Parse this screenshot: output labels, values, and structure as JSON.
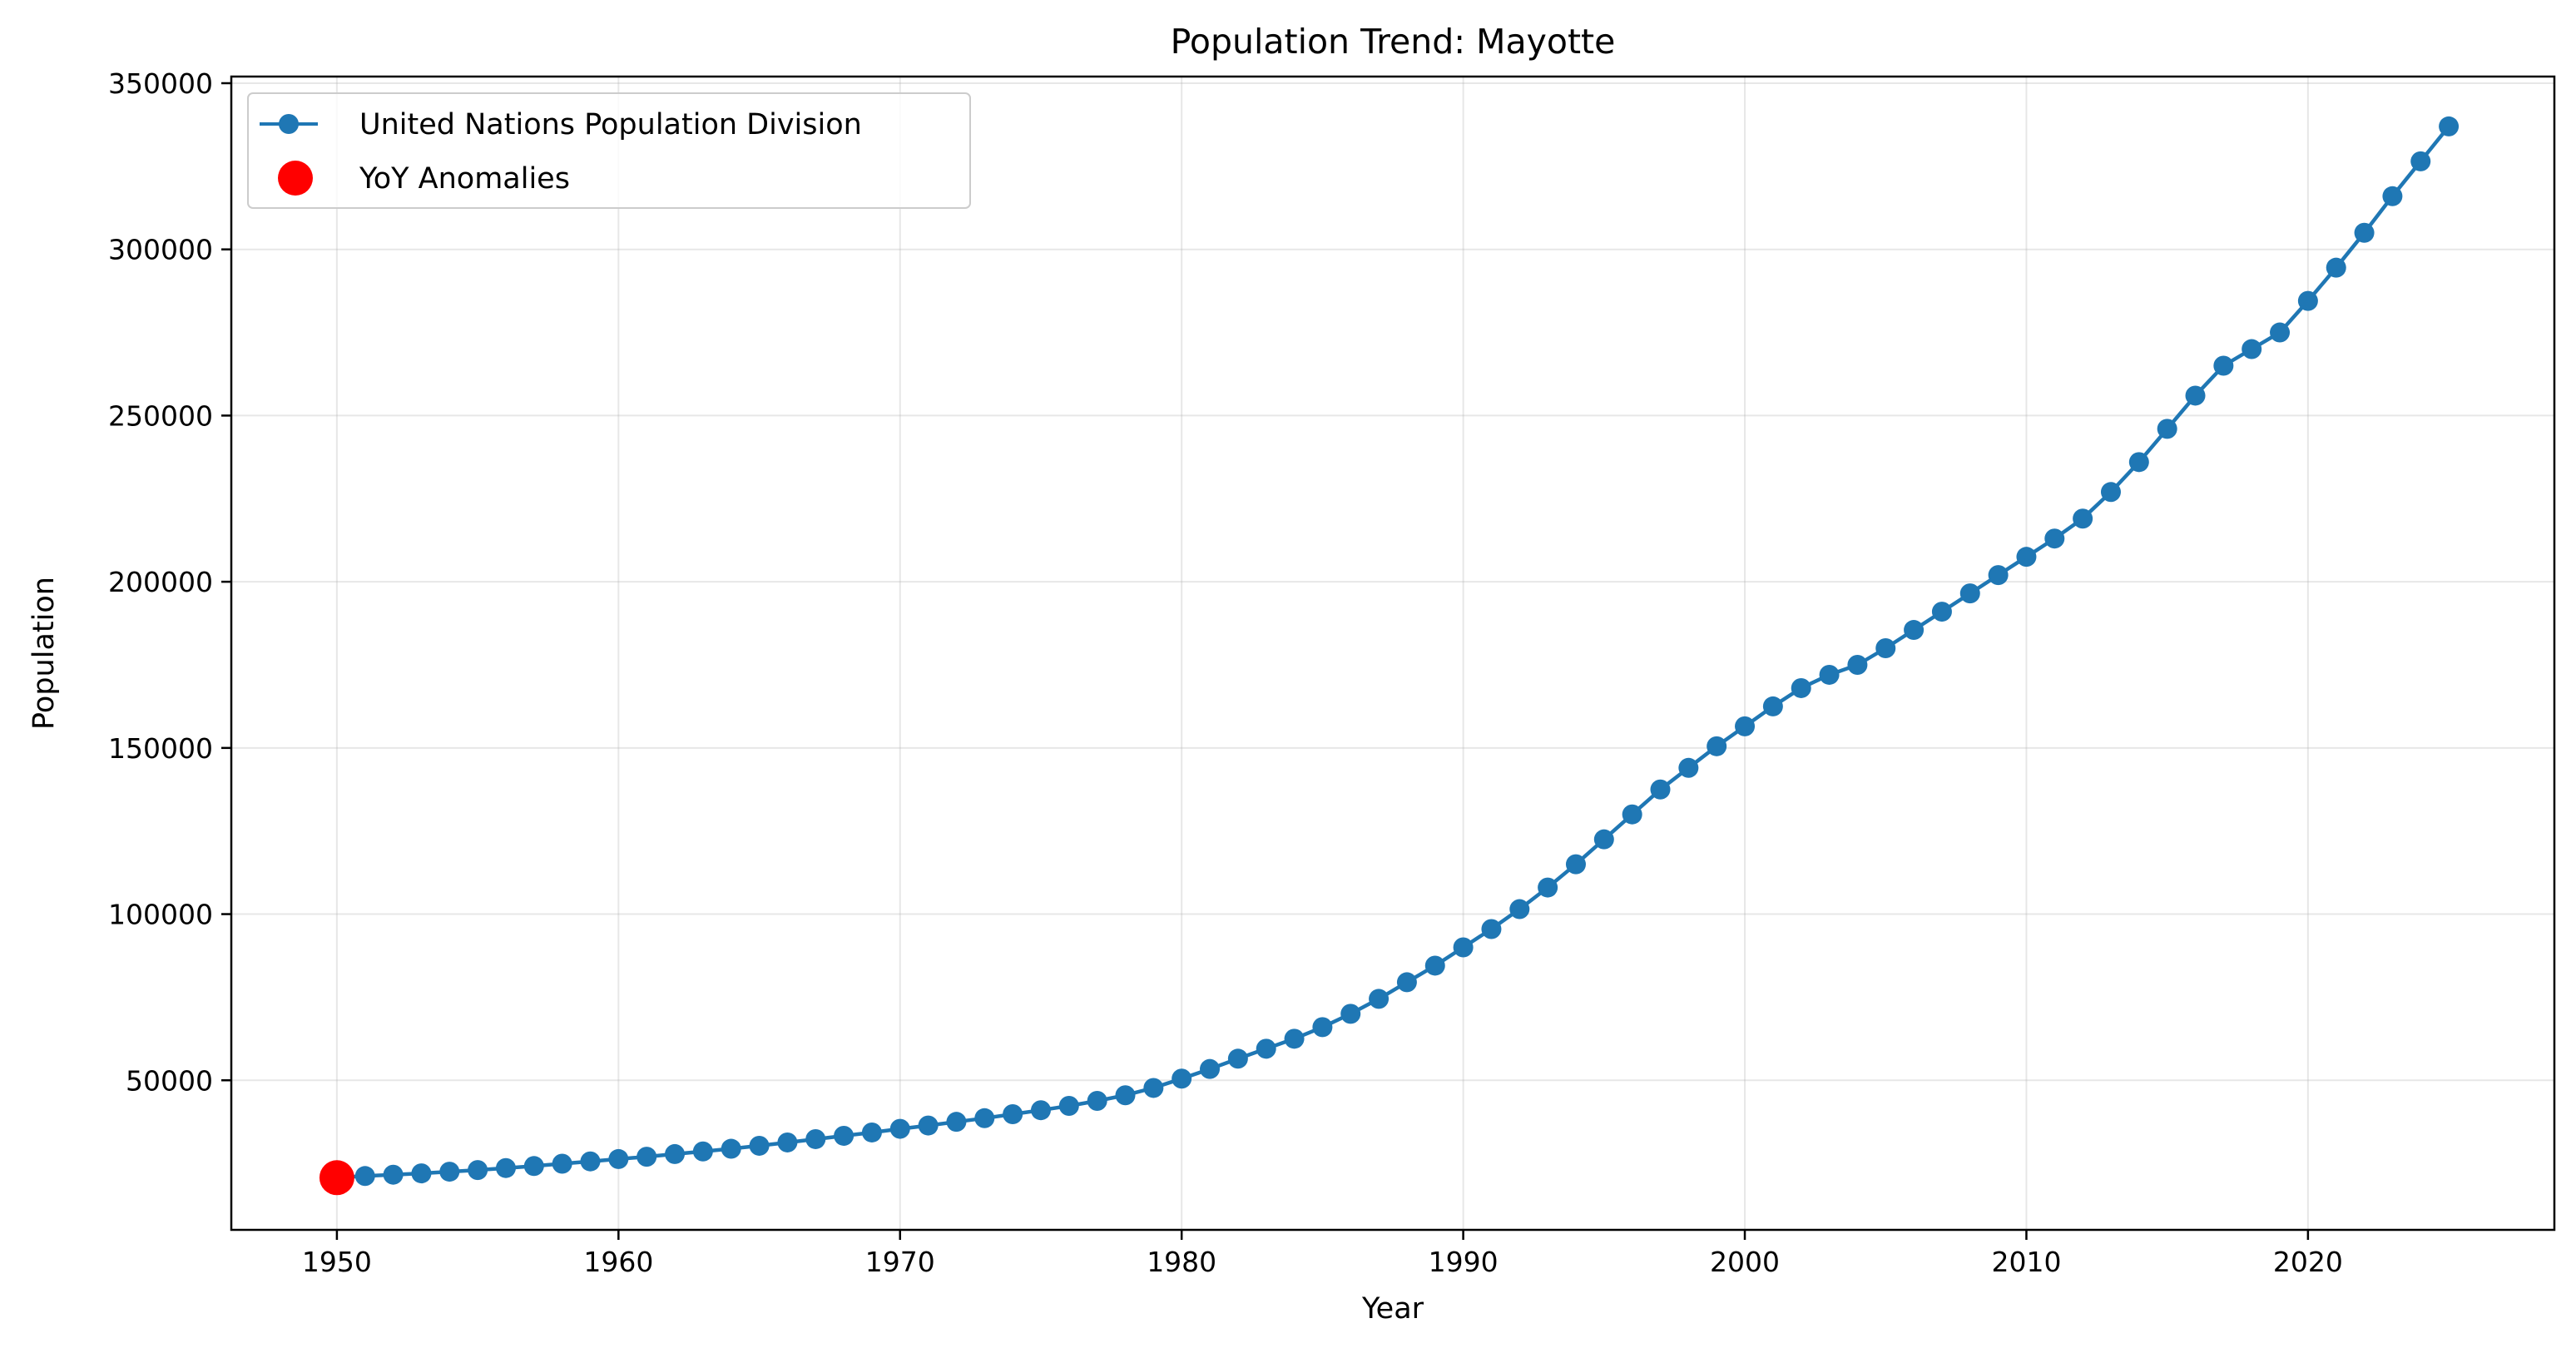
{
  "chart_data": {
    "type": "line",
    "title": "Population Trend: Mayotte",
    "xlabel": "Year",
    "ylabel": "Population",
    "xlim": [
      1946.25,
      1928.75
    ],
    "ylim": [
      5000,
      352000
    ],
    "x_ticks": [
      1950,
      1960,
      1970,
      1980,
      1990,
      2000,
      2010,
      2020
    ],
    "y_ticks": [
      50000,
      100000,
      150000,
      200000,
      250000,
      300000,
      350000
    ],
    "grid": true,
    "legend_placement": "top-left",
    "colors": {
      "series": "#1f77b4",
      "anomaly": "#ff0000"
    },
    "series": [
      {
        "name": "United Nations Population Division",
        "x": [
          1950,
          1951,
          1952,
          1953,
          1954,
          1955,
          1956,
          1957,
          1958,
          1959,
          1960,
          1961,
          1962,
          1963,
          1964,
          1965,
          1966,
          1967,
          1968,
          1969,
          1970,
          1971,
          1972,
          1973,
          1974,
          1975,
          1976,
          1977,
          1978,
          1979,
          1980,
          1981,
          1982,
          1983,
          1984,
          1985,
          1986,
          1987,
          1988,
          1989,
          1990,
          1991,
          1992,
          1993,
          1994,
          1995,
          1996,
          1997,
          1998,
          1999,
          2000,
          2001,
          2002,
          2003,
          2004,
          2005,
          2006,
          2007,
          2008,
          2009,
          2010,
          2011,
          2012,
          2013,
          2014,
          2015,
          2016,
          2017,
          2018,
          2019,
          2020,
          2021,
          2022,
          2023,
          2024,
          2025
        ],
        "y": [
          20700,
          21200,
          21600,
          22000,
          22500,
          23000,
          23600,
          24200,
          24900,
          25600,
          26300,
          27000,
          27800,
          28600,
          29400,
          30300,
          31300,
          32300,
          33300,
          34300,
          35400,
          36400,
          37500,
          38600,
          39800,
          41000,
          42300,
          43800,
          45500,
          47700,
          50500,
          53400,
          56500,
          59500,
          62500,
          66000,
          70000,
          74500,
          79500,
          84500,
          90000,
          95500,
          101500,
          108000,
          115000,
          122500,
          130000,
          137500,
          144000,
          150500,
          156500,
          162500,
          168000,
          172000,
          175000,
          180000,
          185500,
          191000,
          196500,
          202000,
          207500,
          213000,
          219000,
          227000,
          236000,
          246000,
          256000,
          265000,
          270000,
          275000,
          284500,
          294500,
          305000,
          316000,
          326500,
          337000
        ]
      },
      {
        "name": "YoY Anomalies",
        "x": [
          1950
        ],
        "y": [
          20700
        ]
      }
    ]
  }
}
